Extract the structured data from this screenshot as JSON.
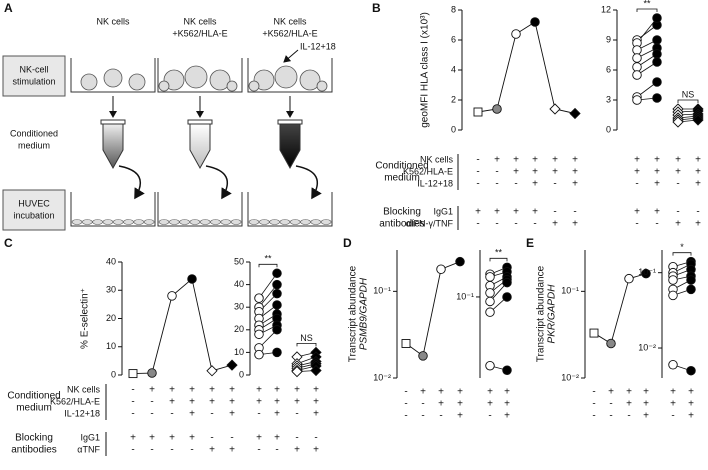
{
  "panel_labels": [
    "A",
    "B",
    "C",
    "D",
    "E"
  ],
  "diagram": {
    "column_headers": [
      [
        "NK cells"
      ],
      [
        "NK cells",
        "+K562/HLA-E"
      ],
      [
        "NK cells",
        "+K562/HLA-E"
      ]
    ],
    "cytokine_label": "IL-12+18",
    "row_labels": [
      [
        "NK-cell",
        "stimulation"
      ],
      [
        "Conditioned",
        "medium"
      ],
      [
        "HUVEC",
        "incubation"
      ]
    ]
  },
  "chart_data": [
    {
      "type": "line",
      "ylabel": [
        "geoMFI HLA class I (x10³)"
      ],
      "ylim": [
        0,
        8
      ],
      "yticks": [
        0,
        2,
        4,
        6,
        8
      ],
      "values": [
        1.2,
        1.4,
        6.4,
        7.2,
        1.4,
        1.1
      ],
      "markers": [
        {
          "shape": "square",
          "fill": "#ffffff"
        },
        {
          "shape": "circle",
          "fill": "#888888"
        },
        {
          "shape": "circle",
          "fill": "#ffffff"
        },
        {
          "shape": "circle",
          "fill": "#000000"
        },
        {
          "shape": "diamond",
          "fill": "#ffffff"
        },
        {
          "shape": "diamond",
          "fill": "#000000"
        }
      ],
      "condition_groups": [
        {
          "label": [
            "Conditioned",
            "medium"
          ],
          "rows": [
            {
              "label": "NK cells",
              "values": [
                "-",
                "+",
                "+",
                "+",
                "+",
                "+"
              ]
            },
            {
              "label": "K562/HLA-E",
              "values": [
                "-",
                "-",
                "+",
                "+",
                "+",
                "+"
              ]
            },
            {
              "label": "IL-12+18",
              "values": [
                "-",
                "-",
                "-",
                "+",
                "-",
                "+"
              ]
            }
          ]
        },
        {
          "label": [
            "Blocking",
            "antibodies"
          ],
          "rows": [
            {
              "label": "IgG1",
              "values": [
                "+",
                "+",
                "+",
                "+",
                "-",
                "-"
              ]
            },
            {
              "label": "αIFN-γ/TNF",
              "values": [
                "-",
                "-",
                "-",
                "-",
                "+",
                "+"
              ]
            }
          ]
        }
      ]
    },
    {
      "type": "paired",
      "ylim": [
        0,
        12
      ],
      "yticks": [
        0,
        3,
        6,
        9,
        12
      ],
      "before_color": "#ffffff",
      "after_color": "#000000",
      "groups": [
        {
          "shape": "circle",
          "annotation": "**",
          "before": [
            9.0,
            8.7,
            8.0,
            7.2,
            6.3,
            5.5,
            3.3,
            3.0
          ],
          "after": [
            10.5,
            11.2,
            9.0,
            8.2,
            7.6,
            6.8,
            4.8,
            3.2
          ]
        },
        {
          "shape": "diamond",
          "annotation": "NS",
          "before": [
            2.1,
            1.8,
            1.5,
            1.2,
            1.0,
            0.8
          ],
          "after": [
            2.1,
            1.9,
            1.6,
            1.4,
            1.2,
            1.0
          ]
        }
      ],
      "condition_groups": [
        {
          "rows": [
            {
              "values": [
                "+",
                "+",
                "+",
                "+"
              ]
            },
            {
              "values": [
                "+",
                "+",
                "+",
                "+"
              ]
            },
            {
              "values": [
                "-",
                "+",
                "-",
                "+"
              ]
            }
          ]
        },
        {
          "rows": [
            {
              "values": [
                "+",
                "+",
                "-",
                "-"
              ]
            },
            {
              "values": [
                "-",
                "-",
                "+",
                "+"
              ]
            }
          ]
        }
      ]
    },
    {
      "type": "line",
      "ylabel": [
        "% E-selectin⁺"
      ],
      "ylim": [
        0,
        40
      ],
      "yticks": [
        0,
        10,
        20,
        30,
        40
      ],
      "values": [
        0.5,
        0.7,
        28,
        34,
        1.5,
        3.5
      ],
      "markers": [
        {
          "shape": "square",
          "fill": "#ffffff"
        },
        {
          "shape": "circle",
          "fill": "#888888"
        },
        {
          "shape": "circle",
          "fill": "#ffffff"
        },
        {
          "shape": "circle",
          "fill": "#000000"
        },
        {
          "shape": "diamond",
          "fill": "#ffffff"
        },
        {
          "shape": "diamond",
          "fill": "#000000"
        }
      ],
      "condition_groups": [
        {
          "label": [
            "Conditioned",
            "medium"
          ],
          "rows": [
            {
              "label": "NK cells",
              "values": [
                "-",
                "+",
                "+",
                "+",
                "+",
                "+"
              ]
            },
            {
              "label": "K562/HLA-E",
              "values": [
                "-",
                "-",
                "+",
                "+",
                "+",
                "+"
              ]
            },
            {
              "label": "IL-12+18",
              "values": [
                "-",
                "-",
                "-",
                "+",
                "-",
                "+"
              ]
            }
          ]
        },
        {
          "label": [
            "Blocking",
            "antibodies"
          ],
          "rows": [
            {
              "label": "IgG1",
              "values": [
                "+",
                "+",
                "+",
                "+",
                "-",
                "-"
              ]
            },
            {
              "label": "αTNF",
              "values": [
                "-",
                "-",
                "-",
                "-",
                "+",
                "+"
              ]
            }
          ]
        }
      ]
    },
    {
      "type": "paired",
      "ylim": [
        0,
        50
      ],
      "yticks": [
        0,
        10,
        20,
        30,
        40,
        50
      ],
      "before_color": "#ffffff",
      "after_color": "#000000",
      "groups": [
        {
          "shape": "circle",
          "annotation": "**",
          "before": [
            34,
            30,
            28,
            25,
            22,
            20,
            18,
            12,
            9
          ],
          "after": [
            45,
            40,
            36,
            31,
            27,
            25,
            22,
            20,
            10
          ]
        },
        {
          "shape": "diamond",
          "annotation": "NS",
          "before": [
            8,
            5,
            4,
            3,
            2,
            1.5
          ],
          "after": [
            10,
            8,
            6,
            5,
            4,
            2
          ]
        }
      ],
      "condition_groups": [
        {
          "rows": [
            {
              "values": [
                "+",
                "+",
                "+",
                "+"
              ]
            },
            {
              "values": [
                "+",
                "+",
                "+",
                "+"
              ]
            },
            {
              "values": [
                "-",
                "+",
                "-",
                "+"
              ]
            }
          ]
        },
        {
          "rows": [
            {
              "values": [
                "+",
                "+",
                "-",
                "-"
              ]
            },
            {
              "values": [
                "-",
                "-",
                "+",
                "+"
              ]
            }
          ]
        }
      ]
    },
    {
      "type": "line",
      "log_y": true,
      "ylabel": [
        "Transcript abundance",
        "PSMB9/GAPDH"
      ],
      "ylim": [
        0.01,
        0.3
      ],
      "yticks": [
        {
          "value": 0.01,
          "label": "10⁻²"
        },
        {
          "value": 0.1,
          "label": "10⁻¹"
        }
      ],
      "values": [
        0.025,
        0.018,
        0.18,
        0.22
      ],
      "markers": [
        {
          "shape": "square",
          "fill": "#ffffff"
        },
        {
          "shape": "circle",
          "fill": "#888888"
        },
        {
          "shape": "circle",
          "fill": "#ffffff"
        },
        {
          "shape": "circle",
          "fill": "#000000"
        }
      ],
      "condition_groups": [
        {
          "rows": [
            {
              "values": [
                "-",
                "+",
                "+",
                "+"
              ]
            },
            {
              "values": [
                "-",
                "-",
                "+",
                "+"
              ]
            },
            {
              "values": [
                "-",
                "-",
                "-",
                "+"
              ]
            }
          ]
        }
      ]
    },
    {
      "type": "paired",
      "log_y": true,
      "ylim": [
        0.015,
        0.3
      ],
      "yticks": [
        {
          "value": 0.1,
          "label": "10⁻¹"
        }
      ],
      "before_color": "#ffffff",
      "after_color": "#000000",
      "groups": [
        {
          "shape": "circle",
          "annotation": "**",
          "before": [
            0.17,
            0.16,
            0.13,
            0.11,
            0.09,
            0.07,
            0.02
          ],
          "after": [
            0.2,
            0.18,
            0.16,
            0.15,
            0.14,
            0.1,
            0.018
          ]
        }
      ],
      "condition_groups": [
        {
          "rows": [
            {
              "values": [
                "+",
                "+"
              ]
            },
            {
              "values": [
                "+",
                "+"
              ]
            },
            {
              "values": [
                "-",
                "+"
              ]
            }
          ]
        }
      ]
    },
    {
      "type": "line",
      "log_y": true,
      "ylabel": [
        "Transcript abundance",
        "PKR/GAPDH"
      ],
      "ylim": [
        0.01,
        0.3
      ],
      "yticks": [
        {
          "value": 0.01,
          "label": "10⁻²"
        },
        {
          "value": 0.1,
          "label": "10⁻¹"
        }
      ],
      "values": [
        0.033,
        0.025,
        0.14,
        0.16
      ],
      "markers": [
        {
          "shape": "square",
          "fill": "#ffffff"
        },
        {
          "shape": "circle",
          "fill": "#888888"
        },
        {
          "shape": "circle",
          "fill": "#ffffff"
        },
        {
          "shape": "circle",
          "fill": "#000000"
        }
      ],
      "condition_groups": [
        {
          "rows": [
            {
              "values": [
                "-",
                "+",
                "+",
                "+"
              ]
            },
            {
              "values": [
                "-",
                "-",
                "+",
                "+"
              ]
            },
            {
              "values": [
                "-",
                "-",
                "-",
                "+"
              ]
            }
          ]
        }
      ]
    },
    {
      "type": "paired",
      "log_y": true,
      "ylim": [
        0.004,
        0.2
      ],
      "yticks": [
        {
          "value": 0.01,
          "label": "10⁻²"
        },
        {
          "value": 0.1,
          "label": "10⁻¹"
        }
      ],
      "before_color": "#ffffff",
      "after_color": "#000000",
      "groups": [
        {
          "shape": "circle",
          "annotation": "*",
          "before": [
            0.12,
            0.1,
            0.09,
            0.08,
            0.06,
            0.05,
            0.006
          ],
          "after": [
            0.14,
            0.13,
            0.11,
            0.09,
            0.08,
            0.06,
            0.005
          ]
        }
      ],
      "condition_groups": [
        {
          "rows": [
            {
              "values": [
                "+",
                "+"
              ]
            },
            {
              "values": [
                "+",
                "+"
              ]
            },
            {
              "values": [
                "-",
                "+"
              ]
            }
          ]
        }
      ]
    }
  ]
}
